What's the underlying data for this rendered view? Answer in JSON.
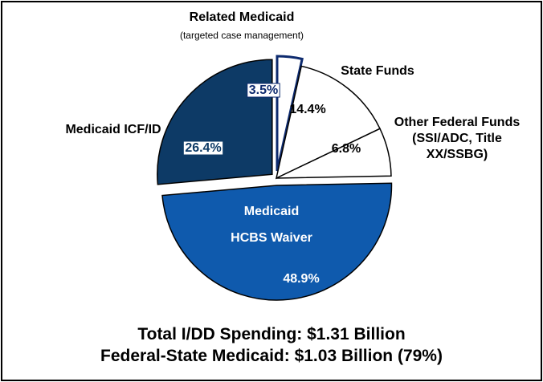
{
  "chart_data": {
    "type": "pie",
    "slices": [
      {
        "id": "related-medicaid",
        "label": "Related Medicaid",
        "sublabel": "(targeted case management)",
        "value": 3.5,
        "value_label": "3.5%",
        "color": "#ffffff",
        "exploded": true
      },
      {
        "id": "state-funds",
        "label": "State Funds",
        "value": 14.4,
        "value_label": "14.4%",
        "color": "#ffffff",
        "exploded": false
      },
      {
        "id": "other-federal",
        "label_lines": [
          "Other Federal Funds",
          "(SSI/ADC, Title",
          "XX/SSBG)"
        ],
        "value": 6.8,
        "value_label": "6.8%",
        "color": "#ffffff",
        "exploded": false
      },
      {
        "id": "hcbs-waiver",
        "label_lines": [
          "Medicaid",
          "HCBS Waiver"
        ],
        "value": 48.9,
        "value_label": "48.9%",
        "color": "#0f5aad",
        "exploded": true
      },
      {
        "id": "icf-id",
        "label": "Medicaid ICF/ID",
        "value": 26.4,
        "value_label": "26.4%",
        "color": "#0d3a66",
        "exploded": true
      }
    ],
    "footer_lines": [
      "Total I/DD Spending: $1.31 Billion",
      "Federal-State Medicaid: $1.03 Billion (79%)"
    ]
  }
}
